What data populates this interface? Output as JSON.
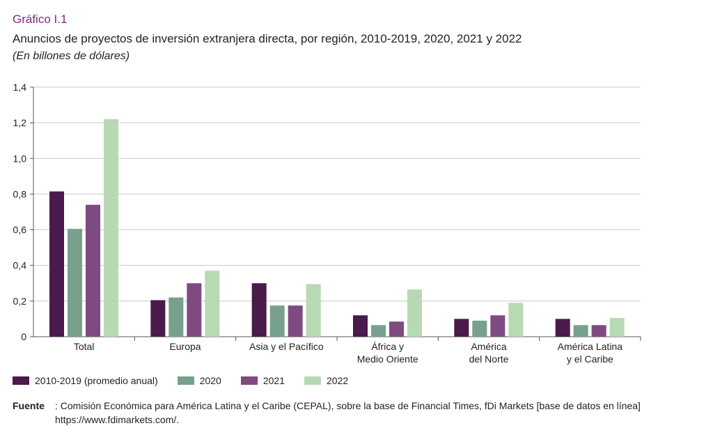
{
  "header": {
    "label": "Gráfico I.1",
    "title": "Anuncios de proyectos de inversión extranjera directa, por región, 2010-2019, 2020, 2021 y 2022",
    "subtitle": "(En billones de dólares)"
  },
  "chart_data": {
    "type": "bar",
    "categories": [
      [
        "Total"
      ],
      [
        "Europa"
      ],
      [
        "Asia y el Pacífico"
      ],
      [
        "África y",
        "Medio Oriente"
      ],
      [
        "América",
        "del Norte"
      ],
      [
        "América Latina",
        "y el Caribe"
      ]
    ],
    "series": [
      {
        "name": "2010-2019 (promedio anual)",
        "color": "#4a1a4b",
        "values": [
          0.815,
          0.205,
          0.3,
          0.12,
          0.1,
          0.1
        ]
      },
      {
        "name": "2020",
        "color": "#77a08d",
        "values": [
          0.605,
          0.22,
          0.175,
          0.065,
          0.09,
          0.065
        ]
      },
      {
        "name": "2021",
        "color": "#7e4b80",
        "values": [
          0.74,
          0.3,
          0.175,
          0.085,
          0.12,
          0.065
        ]
      },
      {
        "name": "2022",
        "color": "#b7d9b3",
        "values": [
          1.22,
          0.37,
          0.295,
          0.265,
          0.19,
          0.105
        ]
      }
    ],
    "y_ticks": [
      "0",
      "0,2",
      "0,4",
      "0,6",
      "0,8",
      "1,0",
      "1,2",
      "1,4"
    ],
    "ylim": [
      0,
      1.4
    ],
    "grid": true,
    "legend_position": "bottom"
  },
  "footer": {
    "source_label": "Fuente",
    "source_text": ": Comisión Económica para América Latina y el Caribe (CEPAL), sobre la base de Financial Times, fDi Markets [base de datos en línea] https://www.fdimarkets.com/."
  }
}
